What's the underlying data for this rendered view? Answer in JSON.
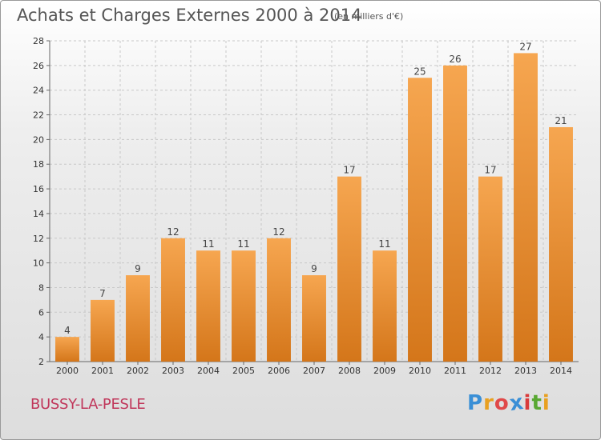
{
  "header": {
    "title": "Achats et Charges Externes 2000 à 2014",
    "subtitle": "(en milliers d'€)"
  },
  "footer": {
    "commune": "BUSSY-LA-PESLE",
    "brand_letters": [
      "P",
      "r",
      "o",
      "x",
      "i",
      "t",
      "i"
    ],
    "brand_colors": [
      "#3a8fd6",
      "#e8a020",
      "#e04848",
      "#3a8fd6",
      "#d93b3b",
      "#59a832",
      "#e8a020"
    ]
  },
  "chart_data": {
    "type": "bar",
    "title": "Achats et Charges Externes 2000 à 2014",
    "subtitle": "(en milliers d'€)",
    "categories": [
      "2000",
      "2001",
      "2002",
      "2003",
      "2004",
      "2005",
      "2006",
      "2007",
      "2008",
      "2009",
      "2010",
      "2011",
      "2012",
      "2013",
      "2014"
    ],
    "values": [
      4,
      7,
      9,
      12,
      11,
      11,
      12,
      9,
      17,
      11,
      25,
      26,
      17,
      27,
      21
    ],
    "ylim": [
      2,
      28
    ],
    "yticks": [
      2,
      4,
      6,
      8,
      10,
      12,
      14,
      16,
      18,
      20,
      22,
      24,
      26,
      28
    ],
    "grid": true,
    "bar_color_top": "#f6a650",
    "bar_color_bottom": "#d4761a",
    "grid_color": "#c8c8c8"
  }
}
